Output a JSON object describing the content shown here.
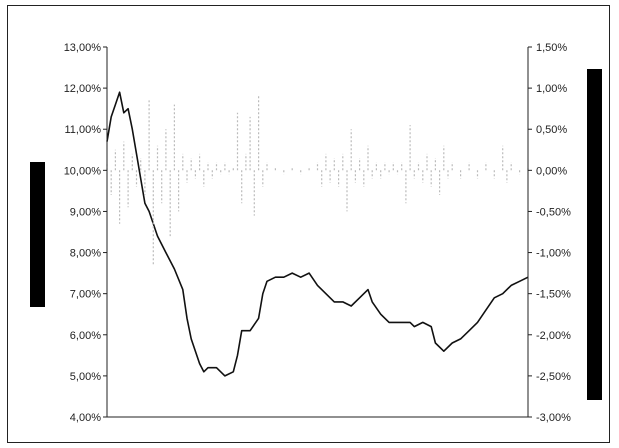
{
  "chart_data": {
    "type": "line",
    "title": "",
    "xlabel": "",
    "ylabel_left": "",
    "ylabel_right": "",
    "grid": false,
    "legend": "none",
    "y_left": {
      "range": [
        4.0,
        13.0
      ],
      "ticks": [
        "13,00%",
        "12,00%",
        "11,00%",
        "10,00%",
        "9,00%",
        "8,00%",
        "7,00%",
        "6,00%",
        "5,00%",
        "4,00%"
      ]
    },
    "y_right": {
      "range": [
        -3.0,
        1.5
      ],
      "ticks": [
        "1,50%",
        "1,00%",
        "0,50%",
        "0,00%",
        "-0,50%",
        "-1,00%",
        "-1,50%",
        "-2,00%",
        "-2,50%",
        "-3,00%"
      ]
    },
    "x_range": [
      0,
      1
    ],
    "series": [
      {
        "axis": "left",
        "color": "#111111",
        "style": "line",
        "points": [
          [
            0.0,
            10.7
          ],
          [
            0.01,
            11.3
          ],
          [
            0.02,
            11.6
          ],
          [
            0.03,
            11.9
          ],
          [
            0.04,
            11.4
          ],
          [
            0.05,
            11.5
          ],
          [
            0.06,
            11.0
          ],
          [
            0.07,
            10.4
          ],
          [
            0.08,
            9.8
          ],
          [
            0.09,
            9.2
          ],
          [
            0.1,
            9.0
          ],
          [
            0.12,
            8.4
          ],
          [
            0.14,
            8.0
          ],
          [
            0.16,
            7.6
          ],
          [
            0.18,
            7.1
          ],
          [
            0.19,
            6.4
          ],
          [
            0.2,
            5.9
          ],
          [
            0.21,
            5.6
          ],
          [
            0.22,
            5.3
          ],
          [
            0.23,
            5.1
          ],
          [
            0.24,
            5.2
          ],
          [
            0.26,
            5.2
          ],
          [
            0.28,
            5.0
          ],
          [
            0.3,
            5.1
          ],
          [
            0.31,
            5.5
          ],
          [
            0.32,
            6.1
          ],
          [
            0.34,
            6.1
          ],
          [
            0.36,
            6.4
          ],
          [
            0.37,
            7.0
          ],
          [
            0.38,
            7.3
          ],
          [
            0.4,
            7.4
          ],
          [
            0.42,
            7.4
          ],
          [
            0.44,
            7.5
          ],
          [
            0.46,
            7.4
          ],
          [
            0.48,
            7.5
          ],
          [
            0.5,
            7.2
          ],
          [
            0.52,
            7.0
          ],
          [
            0.54,
            6.8
          ],
          [
            0.56,
            6.8
          ],
          [
            0.58,
            6.7
          ],
          [
            0.6,
            6.9
          ],
          [
            0.62,
            7.1
          ],
          [
            0.63,
            6.8
          ],
          [
            0.65,
            6.5
          ],
          [
            0.67,
            6.3
          ],
          [
            0.7,
            6.3
          ],
          [
            0.72,
            6.3
          ],
          [
            0.73,
            6.2
          ],
          [
            0.75,
            6.3
          ],
          [
            0.77,
            6.2
          ],
          [
            0.78,
            5.8
          ],
          [
            0.8,
            5.6
          ],
          [
            0.82,
            5.8
          ],
          [
            0.84,
            5.9
          ],
          [
            0.86,
            6.1
          ],
          [
            0.88,
            6.3
          ],
          [
            0.9,
            6.6
          ],
          [
            0.92,
            6.9
          ],
          [
            0.94,
            7.0
          ],
          [
            0.96,
            7.2
          ],
          [
            0.98,
            7.3
          ],
          [
            1.0,
            7.4
          ]
        ]
      },
      {
        "axis": "right",
        "color": "#bbbbbb",
        "style": "spikes",
        "points": [
          [
            0.0,
            0.1
          ],
          [
            0.01,
            -0.3
          ],
          [
            0.02,
            0.25
          ],
          [
            0.03,
            -0.65
          ],
          [
            0.04,
            0.35
          ],
          [
            0.05,
            -0.45
          ],
          [
            0.06,
            0.2
          ],
          [
            0.07,
            -0.2
          ],
          [
            0.08,
            0.15
          ],
          [
            0.09,
            -0.3
          ],
          [
            0.1,
            0.85
          ],
          [
            0.11,
            -1.15
          ],
          [
            0.12,
            0.3
          ],
          [
            0.13,
            -0.4
          ],
          [
            0.14,
            0.5
          ],
          [
            0.15,
            -0.8
          ],
          [
            0.16,
            0.8
          ],
          [
            0.17,
            -0.5
          ],
          [
            0.18,
            0.2
          ],
          [
            0.19,
            -0.15
          ],
          [
            0.2,
            0.15
          ],
          [
            0.21,
            -0.1
          ],
          [
            0.22,
            0.2
          ],
          [
            0.23,
            -0.2
          ],
          [
            0.24,
            0.1
          ],
          [
            0.25,
            -0.1
          ],
          [
            0.26,
            0.1
          ],
          [
            0.27,
            -0.05
          ],
          [
            0.28,
            0.1
          ],
          [
            0.29,
            -0.05
          ],
          [
            0.3,
            0.05
          ],
          [
            0.31,
            0.7
          ],
          [
            0.32,
            -0.4
          ],
          [
            0.33,
            0.2
          ],
          [
            0.34,
            0.65
          ],
          [
            0.35,
            -0.55
          ],
          [
            0.36,
            0.9
          ],
          [
            0.37,
            -0.2
          ],
          [
            0.38,
            0.1
          ],
          [
            0.4,
            0.05
          ],
          [
            0.42,
            -0.05
          ],
          [
            0.44,
            0.05
          ],
          [
            0.46,
            -0.05
          ],
          [
            0.48,
            0.05
          ],
          [
            0.5,
            0.1
          ],
          [
            0.51,
            -0.2
          ],
          [
            0.52,
            0.2
          ],
          [
            0.53,
            -0.15
          ],
          [
            0.54,
            0.15
          ],
          [
            0.55,
            -0.2
          ],
          [
            0.56,
            0.2
          ],
          [
            0.57,
            -0.5
          ],
          [
            0.58,
            0.5
          ],
          [
            0.59,
            -0.15
          ],
          [
            0.6,
            0.15
          ],
          [
            0.61,
            -0.2
          ],
          [
            0.62,
            0.3
          ],
          [
            0.63,
            -0.1
          ],
          [
            0.64,
            0.1
          ],
          [
            0.65,
            -0.1
          ],
          [
            0.66,
            0.1
          ],
          [
            0.67,
            -0.05
          ],
          [
            0.68,
            0.1
          ],
          [
            0.69,
            -0.05
          ],
          [
            0.7,
            0.1
          ],
          [
            0.71,
            -0.4
          ],
          [
            0.72,
            0.55
          ],
          [
            0.73,
            -0.1
          ],
          [
            0.74,
            0.1
          ],
          [
            0.75,
            -0.15
          ],
          [
            0.76,
            0.2
          ],
          [
            0.77,
            -0.2
          ],
          [
            0.78,
            0.15
          ],
          [
            0.79,
            -0.3
          ],
          [
            0.8,
            0.3
          ],
          [
            0.81,
            -0.1
          ],
          [
            0.82,
            0.1
          ],
          [
            0.84,
            -0.1
          ],
          [
            0.86,
            0.1
          ],
          [
            0.88,
            -0.1
          ],
          [
            0.9,
            0.1
          ],
          [
            0.92,
            -0.1
          ],
          [
            0.94,
            0.3
          ],
          [
            0.95,
            -0.15
          ],
          [
            0.96,
            0.1
          ],
          [
            0.98,
            -0.05
          ],
          [
            1.0,
            0.05
          ]
        ]
      }
    ],
    "side_bars": [
      {
        "position": "left",
        "color": "#000000"
      },
      {
        "position": "right",
        "color": "#000000"
      }
    ]
  }
}
